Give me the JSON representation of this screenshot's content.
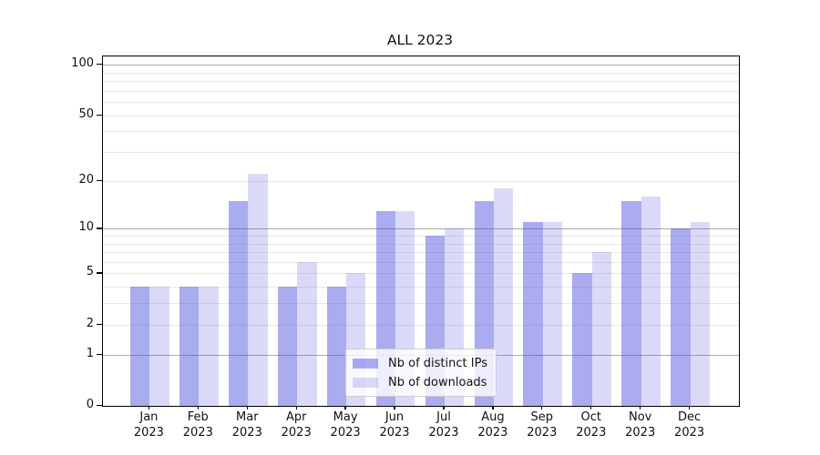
{
  "chart_data": {
    "type": "bar",
    "title": "ALL 2023",
    "y_scale": "log10(1+x)",
    "grid": true,
    "legend_position": "lower center",
    "categories": [
      "Jan",
      "Feb",
      "Mar",
      "Apr",
      "May",
      "Jun",
      "Jul",
      "Aug",
      "Sep",
      "Oct",
      "Nov",
      "Dec"
    ],
    "year_label": "2023",
    "series": [
      {
        "name": "Nb of distinct IPs",
        "color": "rgba(68,68,221,0.45)",
        "values": [
          4,
          4,
          15,
          4,
          4,
          13,
          9,
          15,
          11,
          5,
          15,
          10
        ]
      },
      {
        "name": "Nb of downloads",
        "color": "rgba(68,68,221,0.20)",
        "values": [
          4,
          4,
          22,
          6,
          5,
          13,
          10,
          18,
          11,
          7,
          16,
          11
        ]
      }
    ],
    "y_ticks": [
      100,
      50,
      20,
      10,
      5,
      2,
      1,
      0
    ],
    "major_gridlines": [
      1,
      10,
      100
    ],
    "minor_gridlines": [
      2,
      3,
      4,
      5,
      6,
      7,
      8,
      9,
      20,
      30,
      40,
      50,
      60,
      70,
      80,
      90
    ],
    "ylim": [
      0,
      112
    ]
  },
  "colors": {
    "major_grid": "#ababab",
    "minor_grid": "#e8e8e8",
    "spine": "#000000",
    "text": "#111111"
  }
}
